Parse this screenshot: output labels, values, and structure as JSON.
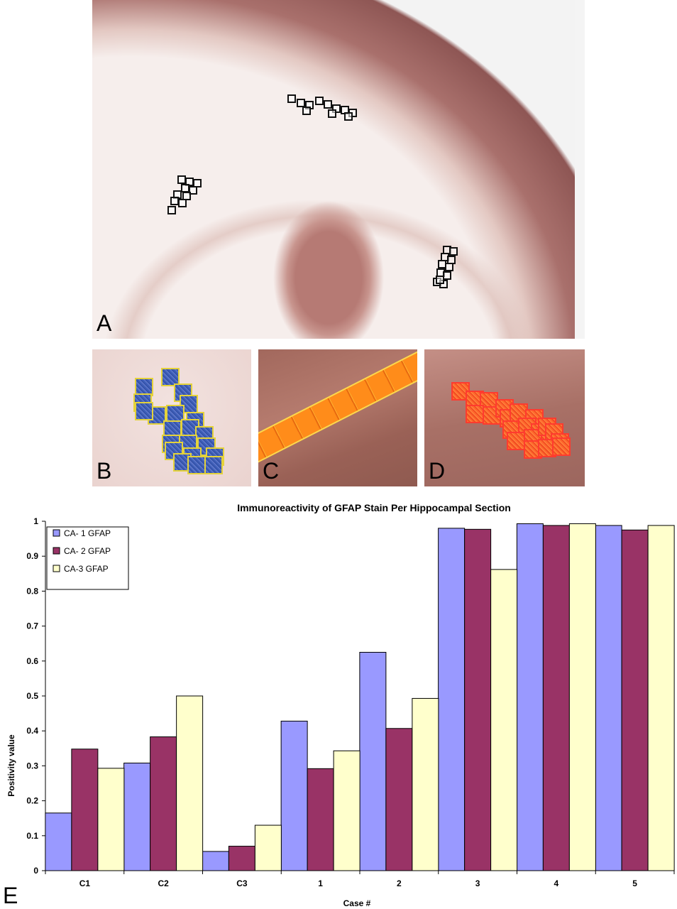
{
  "panel_labels": {
    "a": "A",
    "b": "B",
    "c": "C",
    "d": "D",
    "e": "E"
  },
  "colors": {
    "ca1": "#9999ff",
    "ca2": "#993366",
    "ca3": "#ffffcc",
    "bar_stroke": "#000000",
    "roi_blue": "#3c5db6",
    "roi_orange": "#ff8c1a",
    "roi_red": "#ff5a2a"
  },
  "chart_data": {
    "type": "bar",
    "title": "Immunoreactivity of GFAP Stain Per Hippocampal Section",
    "xlabel": "Case #",
    "ylabel": "Positivity value",
    "ylim": [
      0,
      1
    ],
    "yticks": [
      "0",
      "0.1",
      "0.2",
      "0.3",
      "0.4",
      "0.5",
      "0.6",
      "0.7",
      "0.8",
      "0.9",
      "1"
    ],
    "categories": [
      "C1",
      "C2",
      "C3",
      "1",
      "2",
      "3",
      "4",
      "5"
    ],
    "legend_position": "top-left",
    "grid": false,
    "series": [
      {
        "name": "CA- 1 GFAP",
        "values": [
          0.165,
          0.308,
          0.055,
          0.428,
          0.625,
          0.98,
          0.993,
          0.988
        ]
      },
      {
        "name": " CA- 2 GFAP",
        "values": [
          0.348,
          0.383,
          0.07,
          0.292,
          0.407,
          0.977,
          0.988,
          0.975
        ]
      },
      {
        "name": "CA-3 GFAP",
        "values": [
          0.293,
          0.5,
          0.13,
          0.343,
          0.493,
          0.862,
          0.993,
          0.988
        ]
      }
    ]
  }
}
